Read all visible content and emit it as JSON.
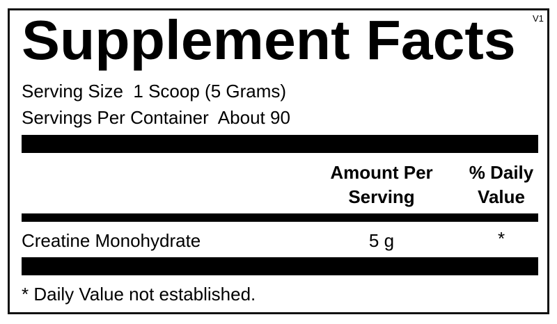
{
  "label": {
    "title": "Supplement Facts",
    "version": "V1",
    "serving_size": "Serving Size  1 Scoop (5 Grams)",
    "servings_per_container": "Servings Per Container  About 90",
    "columns": {
      "amount_line1": "Amount Per",
      "amount_line2": "Serving",
      "daily_line1": "% Daily",
      "daily_line2": "Value"
    },
    "rows": [
      {
        "ingredient": "Creatine Monohydrate",
        "amount": "5 g",
        "daily_value": "*"
      }
    ],
    "footnote": "* Daily Value not established."
  }
}
